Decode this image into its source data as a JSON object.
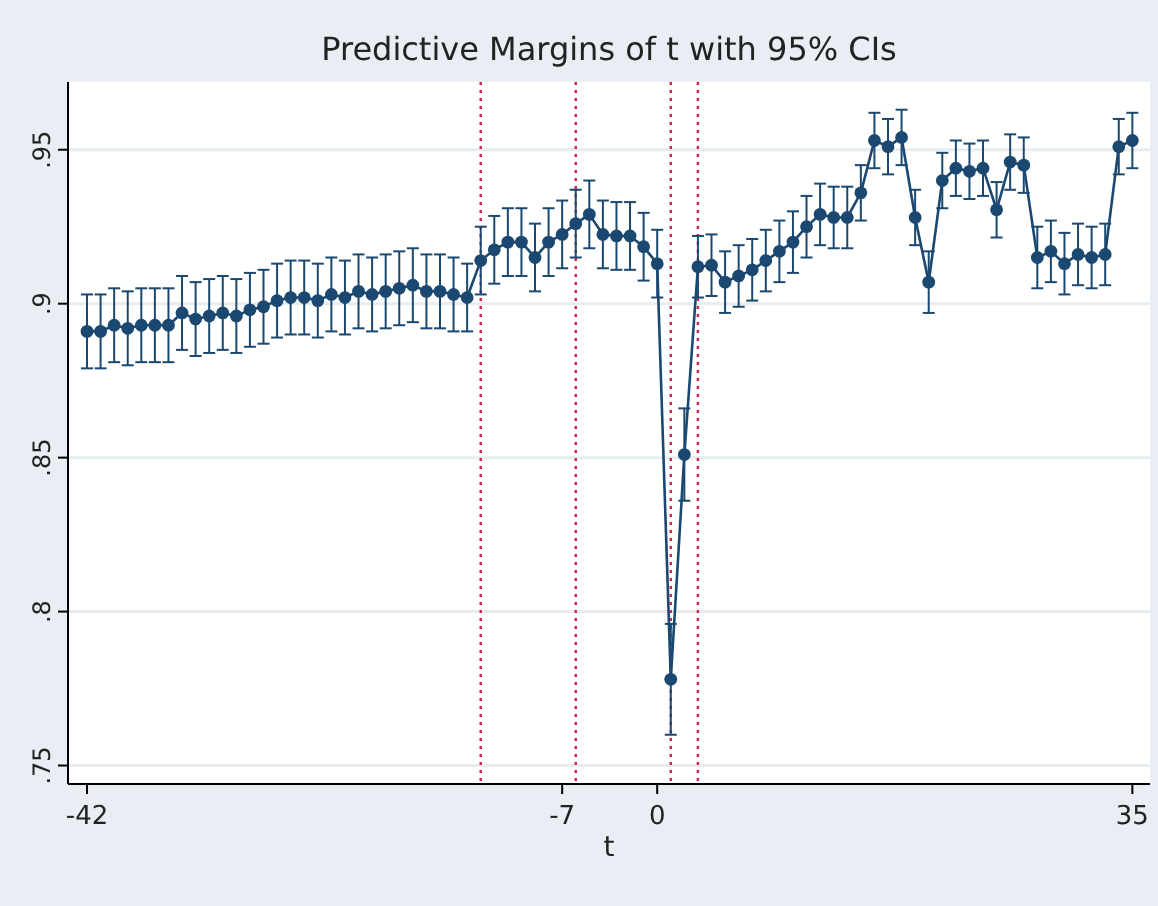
{
  "chart_data": {
    "type": "line",
    "title": "Predictive Margins of t with 95% CIs",
    "xlabel": "t",
    "x": [
      -42,
      -41,
      -40,
      -39,
      -38,
      -37,
      -36,
      -35,
      -34,
      -33,
      -32,
      -31,
      -30,
      -29,
      -28,
      -27,
      -26,
      -25,
      -24,
      -23,
      -22,
      -21,
      -20,
      -19,
      -18,
      -17,
      -16,
      -15,
      -14,
      -13,
      -12,
      -11,
      -10,
      -9,
      -8,
      -7,
      -6,
      -5,
      -4,
      -3,
      -2,
      -1,
      0,
      1,
      2,
      3,
      4,
      5,
      6,
      7,
      8,
      9,
      10,
      11,
      12,
      13,
      14,
      15,
      16,
      17,
      18,
      19,
      20,
      21,
      22,
      23,
      24,
      25,
      26,
      27,
      28,
      29,
      30,
      31,
      32,
      33,
      34,
      35
    ],
    "series": [
      {
        "color": "#1a4870",
        "values": [
          0.891,
          0.891,
          0.893,
          0.892,
          0.893,
          0.893,
          0.893,
          0.897,
          0.895,
          0.896,
          0.897,
          0.896,
          0.898,
          0.899,
          0.901,
          0.902,
          0.902,
          0.901,
          0.903,
          0.902,
          0.904,
          0.903,
          0.904,
          0.905,
          0.906,
          0.904,
          0.904,
          0.903,
          0.902,
          0.914,
          0.9175,
          0.92,
          0.92,
          0.915,
          0.92,
          0.9225,
          0.926,
          0.929,
          0.9225,
          0.922,
          0.922,
          0.9185,
          0.913,
          0.778,
          0.851,
          0.912,
          0.9125,
          0.907,
          0.909,
          0.911,
          0.914,
          0.917,
          0.92,
          0.925,
          0.929,
          0.928,
          0.928,
          0.936,
          0.953,
          0.951,
          0.954,
          0.928,
          0.907,
          0.94,
          0.944,
          0.943,
          0.944,
          0.9305,
          0.946,
          0.945,
          0.915,
          0.917,
          0.913,
          0.916,
          0.915,
          0.916,
          0.951,
          0.953
        ],
        "errors": [
          0.012,
          0.012,
          0.012,
          0.012,
          0.012,
          0.012,
          0.012,
          0.012,
          0.012,
          0.012,
          0.012,
          0.012,
          0.012,
          0.012,
          0.012,
          0.012,
          0.012,
          0.012,
          0.012,
          0.012,
          0.012,
          0.012,
          0.012,
          0.012,
          0.012,
          0.012,
          0.012,
          0.012,
          0.011,
          0.011,
          0.011,
          0.011,
          0.011,
          0.011,
          0.011,
          0.011,
          0.011,
          0.011,
          0.011,
          0.011,
          0.011,
          0.011,
          0.011,
          0.018,
          0.015,
          0.01,
          0.01,
          0.01,
          0.01,
          0.01,
          0.01,
          0.01,
          0.01,
          0.01,
          0.01,
          0.01,
          0.01,
          0.009,
          0.009,
          0.009,
          0.009,
          0.009,
          0.01,
          0.009,
          0.009,
          0.009,
          0.009,
          0.009,
          0.009,
          0.009,
          0.01,
          0.01,
          0.01,
          0.01,
          0.01,
          0.01,
          0.009,
          0.009
        ]
      }
    ],
    "xlim": [
      -43.4,
      36.3
    ],
    "xticks": [
      -42,
      -7,
      0,
      35
    ],
    "ylim": [
      0.744,
      0.972
    ],
    "yticks": [
      {
        "value": 0.75,
        "label": ".75"
      },
      {
        "value": 0.8,
        "label": ".8"
      },
      {
        "value": 0.85,
        "label": ".85"
      },
      {
        "value": 0.9,
        "label": ".9"
      },
      {
        "value": 0.95,
        "label": ".95"
      }
    ],
    "grid": "y",
    "marker": "circle",
    "line_style": "solid",
    "ref_lines": [
      {
        "axis": "x",
        "value": -13,
        "color": "#d4204a",
        "line_style": "dotted"
      },
      {
        "axis": "x",
        "value": -6,
        "color": "#d4204a",
        "line_style": "dotted"
      },
      {
        "axis": "x",
        "value": 1,
        "color": "#d4204a",
        "line_style": "dotted"
      },
      {
        "axis": "x",
        "value": 3,
        "color": "#d4204a",
        "line_style": "dotted"
      }
    ]
  }
}
